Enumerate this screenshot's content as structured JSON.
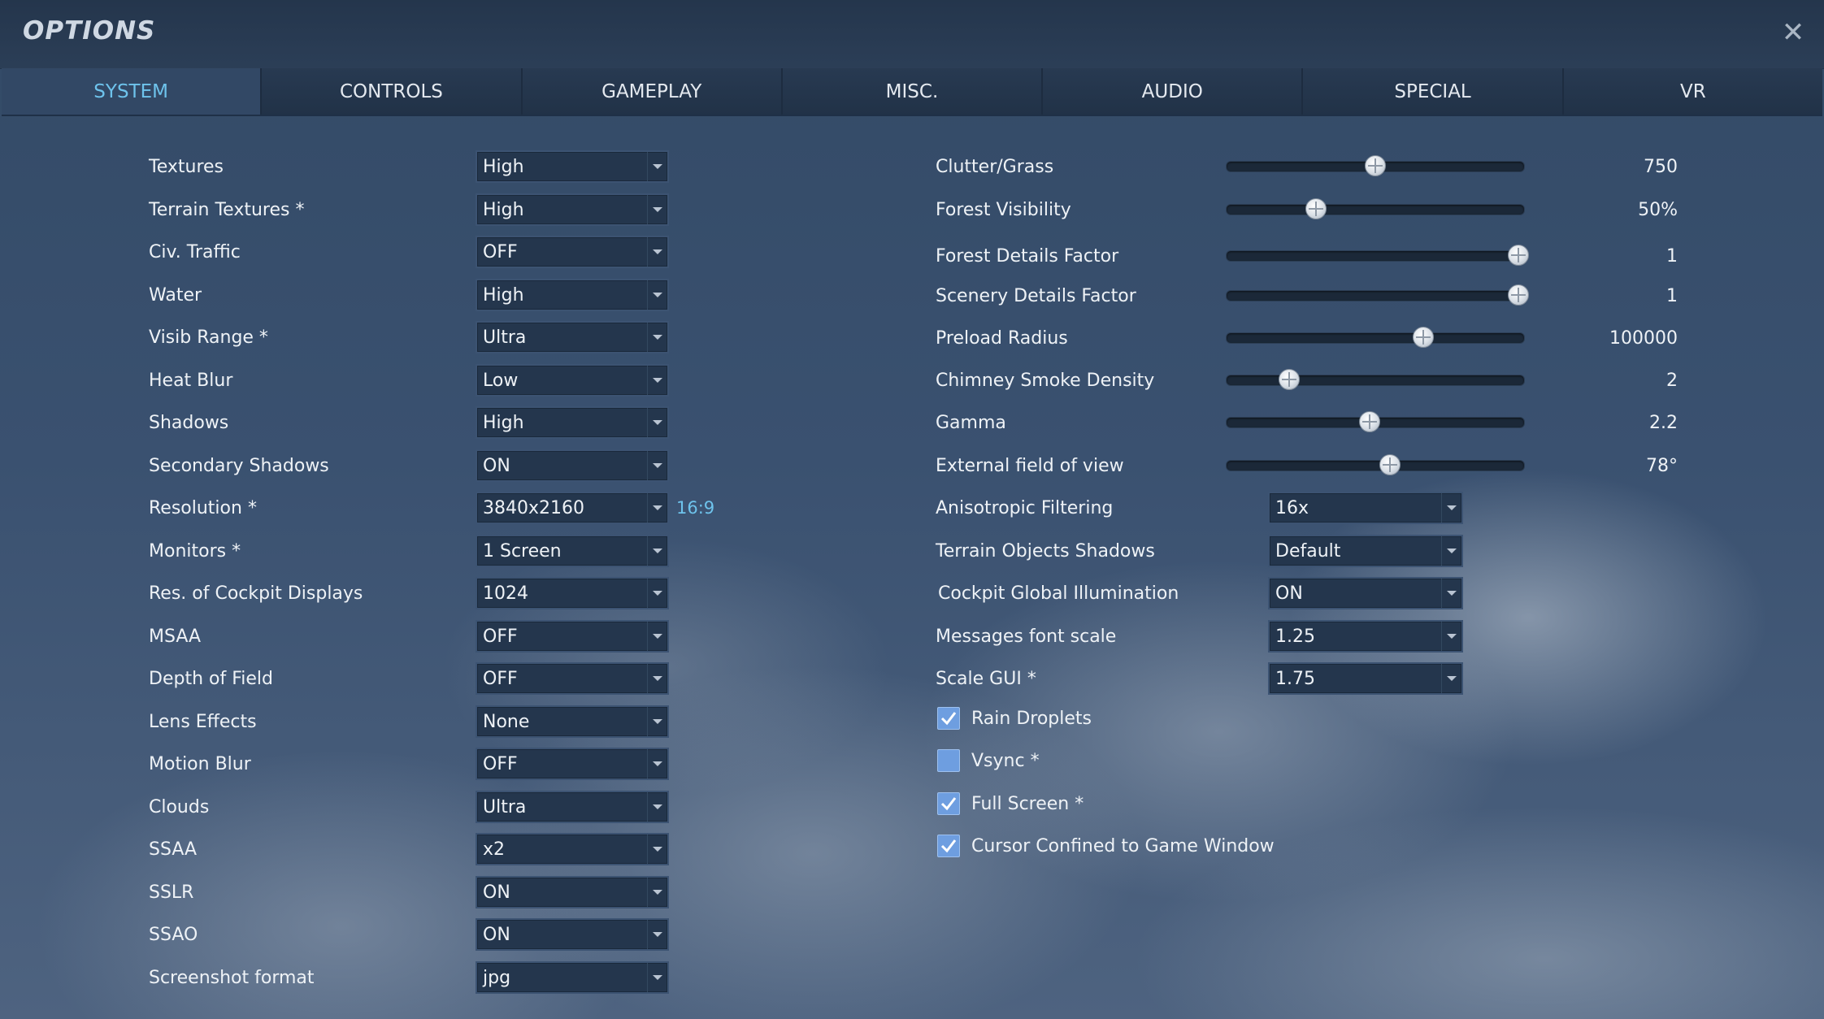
{
  "window": {
    "title": "OPTIONS",
    "close_icon": "close-icon"
  },
  "tabs": [
    {
      "label": "SYSTEM",
      "active": true
    },
    {
      "label": "CONTROLS"
    },
    {
      "label": "GAMEPLAY"
    },
    {
      "label": "MISC."
    },
    {
      "label": "AUDIO"
    },
    {
      "label": "SPECIAL"
    },
    {
      "label": "VR"
    }
  ],
  "left": [
    {
      "label": "Textures",
      "value": "High"
    },
    {
      "label": "Terrain Textures *",
      "value": "High"
    },
    {
      "label": "Civ. Traffic",
      "value": "OFF"
    },
    {
      "label": "Water",
      "value": "High"
    },
    {
      "label": "Visib Range *",
      "value": "Ultra"
    },
    {
      "label": "Heat Blur",
      "value": "Low"
    },
    {
      "label": "Shadows",
      "value": "High"
    },
    {
      "label": "Secondary Shadows",
      "value": "ON"
    },
    {
      "label": "Resolution *",
      "value": "3840x2160",
      "aspect": "16:9"
    },
    {
      "label": "Monitors *",
      "value": "1 Screen"
    },
    {
      "label": "Res. of Cockpit Displays",
      "value": "1024"
    },
    {
      "label": "MSAA",
      "value": "OFF"
    },
    {
      "label": "Depth of Field",
      "value": "OFF"
    },
    {
      "label": "Lens Effects",
      "value": "None"
    },
    {
      "label": "Motion Blur",
      "value": "OFF"
    },
    {
      "label": "Clouds",
      "value": "Ultra"
    },
    {
      "label": "SSAA",
      "value": "x2"
    },
    {
      "label": "SSLR",
      "value": "ON"
    },
    {
      "label": "SSAO",
      "value": "ON"
    },
    {
      "label": "Screenshot format",
      "value": "jpg"
    }
  ],
  "sliders": [
    {
      "label": "Clutter/Grass",
      "value": "750",
      "level": 0.5
    },
    {
      "label": "Forest Visibility",
      "value": "50%",
      "level": 0.3
    },
    {
      "label": "Forest Details Factor",
      "value": "1",
      "level": 0.98
    },
    {
      "label": "Scenery Details Factor",
      "value": "1",
      "level": 0.98
    },
    {
      "label": "Preload Radius",
      "value": "100000",
      "level": 0.66
    },
    {
      "label": "Chimney Smoke Density",
      "value": "2",
      "level": 0.21
    },
    {
      "label": "Gamma",
      "value": "2.2",
      "level": 0.48
    },
    {
      "label": "External field of view",
      "value": "78°",
      "level": 0.55
    }
  ],
  "right_selects": [
    {
      "label": "Anisotropic Filtering",
      "value": "16x"
    },
    {
      "label": "Terrain Objects Shadows",
      "value": "Default"
    },
    {
      "label": "Cockpit Global Illumination",
      "value": "ON"
    },
    {
      "label": "Messages font scale",
      "value": "1.25"
    },
    {
      "label": "Scale GUI *",
      "value": "1.75"
    }
  ],
  "checkboxes": [
    {
      "label": "Rain Droplets",
      "checked": true
    },
    {
      "label": "Vsync *",
      "checked": false
    },
    {
      "label": "Full Screen *",
      "checked": true
    },
    {
      "label": "Cursor Confined to Game Window",
      "checked": true
    }
  ]
}
